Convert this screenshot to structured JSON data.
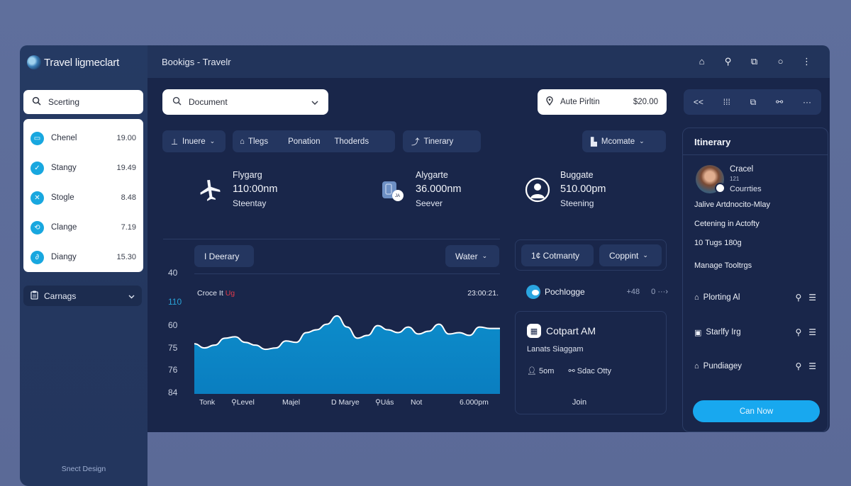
{
  "app": {
    "brand": "Travel ligmeclart",
    "window_title": "Bookigs - Travelr"
  },
  "topbar": {
    "icons": [
      {
        "name": "home-icon",
        "glyph": "⌂"
      },
      {
        "name": "location-icon",
        "glyph": "⚲"
      },
      {
        "name": "share-icon",
        "glyph": "⧉"
      },
      {
        "name": "circle-icon",
        "glyph": "○"
      },
      {
        "name": "more-vertical-icon",
        "glyph": "⋮"
      }
    ]
  },
  "sidebar": {
    "search_placeholder": "Scerting",
    "items": [
      {
        "label": "Chenel",
        "value": "19.00",
        "icon": "▭"
      },
      {
        "label": "Stangy",
        "value": "19.49",
        "icon": "✓"
      },
      {
        "label": "Stogle",
        "value": "8.48",
        "icon": "✕"
      },
      {
        "label": "Clange",
        "value": "7.19",
        "icon": "⟲"
      },
      {
        "label": "Diangy",
        "value": "15.30",
        "icon": "∂"
      }
    ],
    "dropdown_label": "Carnags",
    "footer": "Snect Design"
  },
  "toolbar": {
    "document_select": "Document",
    "location_label": "Aute Pirltin",
    "location_price": "$20.00",
    "tool_icons": [
      "<<",
      "⁞⁞⁞",
      "⧉",
      "⚯",
      "···"
    ]
  },
  "chips": {
    "insure": "Inuere",
    "group": [
      "Tlegs",
      "Ponation",
      "Thoderds"
    ],
    "itinerary": "Tinerary",
    "mcomate": "Mcomate"
  },
  "stats": [
    {
      "title": "Flygarg",
      "value": "110:00nm",
      "sub": "Steentay",
      "icon": "plane-icon"
    },
    {
      "title": "Alygarte",
      "value": "36.000nm",
      "sub": "Seever",
      "icon": "luggage-icon"
    },
    {
      "title": "Buggate",
      "value": "510.00pm",
      "sub": "Steening",
      "icon": "person-icon"
    }
  ],
  "chart_panel": {
    "left_button": "I Deerary",
    "right_dropdown": "Water",
    "title_prefix": "Croce It",
    "title_highlight": "Ug",
    "timestamp": "23:00:21."
  },
  "chart_data": {
    "type": "area",
    "title": "Croce It Ug",
    "y_tick_labels": [
      "40",
      "110",
      "60",
      "75",
      "76",
      "84"
    ],
    "x_tick_labels": [
      "Tonk",
      "Level",
      "Majel",
      "D Marye",
      "Uás",
      "Not",
      "6.000pm"
    ],
    "x": [
      0,
      1,
      2,
      3,
      4,
      5,
      6,
      7,
      8,
      9,
      10,
      11,
      12,
      13,
      14,
      15,
      16,
      17,
      18,
      19,
      20,
      21,
      22,
      23,
      24,
      25,
      26,
      27,
      28,
      29,
      30
    ],
    "values": [
      72,
      66,
      70,
      80,
      82,
      74,
      70,
      64,
      66,
      76,
      74,
      88,
      92,
      100,
      112,
      96,
      80,
      84,
      98,
      92,
      88,
      96,
      86,
      90,
      100,
      86,
      88,
      84,
      96,
      94,
      94
    ],
    "ylim": [
      0,
      120
    ],
    "fill_color": "#0f8ecf",
    "line_color": "#ffffff",
    "grid": false
  },
  "community": {
    "button": "1¢ Cotmanty",
    "dropdown": "Coppint",
    "row_label": "Pochlogge",
    "row_value": "+48",
    "row_count": "0",
    "row_more": "···›"
  },
  "join_card": {
    "title": "Cotpart AM",
    "subtitle": "Lanats Siaggam",
    "meta_people": "5om",
    "meta_place": "Sdac Otty",
    "action": "Join"
  },
  "itinerary": {
    "title": "Itinerary",
    "person_name": "Cracel",
    "person_number": "121",
    "person_countries": "Courrties",
    "lines": [
      "Jalive Artdnocito-Mlay",
      "Cetening in Actofty",
      "10 Tugs 180g",
      "Manage Tooltrgs"
    ],
    "activities": [
      {
        "label": "Plorting Al",
        "icon": "⌂"
      },
      {
        "label": "Starlfy Irg",
        "icon": "▣"
      },
      {
        "label": "Pundiagey",
        "icon": "⌂"
      }
    ],
    "cta": "Can Now"
  },
  "colors": {
    "accent": "#18a8ef",
    "chart_fill": "#0f8ecf",
    "highlight_red": "#e23a4a",
    "panel_bg": "#19264a"
  }
}
